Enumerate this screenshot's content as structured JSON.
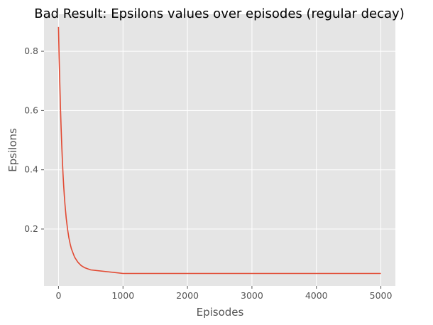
{
  "chart_data": {
    "type": "line",
    "title": "Bad Result: Epsilons values over episodes (regular decay)",
    "xlabel": "Episodes",
    "ylabel": "Epsilons",
    "xlim": [
      -225,
      5225
    ],
    "ylim": [
      0.008,
      0.925
    ],
    "xticks": [
      0,
      1000,
      2000,
      3000,
      4000,
      5000
    ],
    "xtick_labels": [
      "0",
      "1000",
      "2000",
      "3000",
      "4000",
      "5000"
    ],
    "yticks": [
      0.2,
      0.4,
      0.6,
      0.8
    ],
    "ytick_labels": [
      "0.2",
      "0.4",
      "0.6",
      "0.8"
    ],
    "grid": true,
    "style": "ggplot",
    "colors": {
      "background": "#E5E5E5",
      "grid": "#FFFFFF",
      "line": "#E24A33",
      "tick": "#555555"
    },
    "series": [
      {
        "x": [
          0,
          10,
          20,
          30,
          40,
          50,
          60,
          70,
          80,
          90,
          100,
          120,
          140,
          160,
          180,
          200,
          250,
          300,
          350,
          400,
          500,
          1000,
          2000,
          3000,
          4000,
          5000
        ],
        "values": [
          0.882,
          0.778,
          0.688,
          0.609,
          0.541,
          0.482,
          0.43,
          0.385,
          0.346,
          0.313,
          0.284,
          0.236,
          0.199,
          0.171,
          0.15,
          0.133,
          0.105,
          0.088,
          0.077,
          0.07,
          0.062,
          0.05,
          0.05,
          0.05,
          0.05,
          0.05
        ]
      }
    ]
  }
}
